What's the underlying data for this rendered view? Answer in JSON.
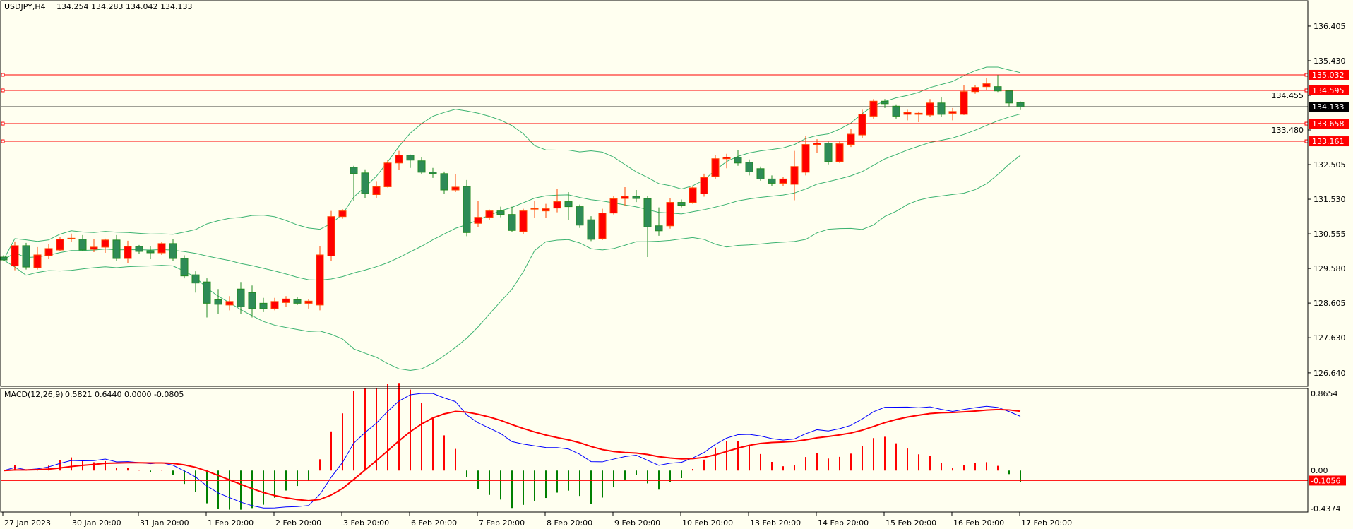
{
  "header": {
    "symbol": "USDJPY,H4",
    "ohlc": "134.254 134.283 134.042 134.133"
  },
  "macd_header": {
    "label": "MACD(12,26,9)",
    "values": "0.5821 0.6440 0.0000 -0.0805"
  },
  "colors": {
    "background": "#fffff0",
    "bull": "#ff0000",
    "bull_border": "#ff4500",
    "bear": "#2e8b57",
    "bear_border": "#228b22",
    "bands": "#3cb371",
    "level": "#ff0000",
    "macd_line": "#0000ff",
    "signal_line": "#ff0000"
  },
  "chart_data": {
    "type": "candlestick",
    "title": "USDJPY,H4",
    "price_range": [
      126.26,
      137.12
    ],
    "y_ticks": [
      "136.405",
      "135.430",
      "134.455",
      "133.480",
      "132.505",
      "131.530",
      "130.555",
      "129.580",
      "128.605",
      "127.630",
      "126.640"
    ],
    "x_ticks": [
      "27 Jan 2023",
      "30 Jan 20:00",
      "31 Jan 20:00",
      "1 Feb 20:00",
      "2 Feb 20:00",
      "3 Feb 20:00",
      "6 Feb 20:00",
      "7 Feb 20:00",
      "8 Feb 20:00",
      "9 Feb 20:00",
      "10 Feb 20:00",
      "13 Feb 20:00",
      "14 Feb 20:00",
      "15 Feb 20:00",
      "16 Feb 20:00",
      "17 Feb 20:00"
    ],
    "bars_per_x_tick": 6,
    "indicators": [
      "Bollinger Bands(20,2)",
      "MACD(12,26,9)"
    ],
    "candles_ohlc": [
      [
        129.9,
        129.95,
        129.8,
        129.82
      ],
      [
        129.65,
        130.34,
        129.53,
        130.22
      ],
      [
        130.22,
        130.3,
        129.55,
        129.62
      ],
      [
        129.6,
        130.18,
        129.55,
        129.96
      ],
      [
        129.94,
        130.26,
        129.84,
        130.14
      ],
      [
        130.1,
        130.46,
        130.08,
        130.4
      ],
      [
        130.41,
        130.56,
        130.32,
        130.43
      ],
      [
        130.4,
        130.52,
        130.08,
        130.1
      ],
      [
        130.12,
        130.4,
        130.04,
        130.18
      ],
      [
        130.18,
        130.42,
        130.02,
        130.38
      ],
      [
        130.38,
        130.52,
        129.78,
        129.86
      ],
      [
        129.86,
        130.36,
        129.72,
        130.2
      ],
      [
        130.2,
        130.24,
        130.0,
        130.06
      ],
      [
        130.08,
        130.2,
        129.84,
        130.02
      ],
      [
        130.02,
        130.32,
        129.96,
        130.28
      ],
      [
        130.28,
        130.4,
        129.78,
        129.86
      ],
      [
        129.86,
        129.95,
        129.3,
        129.37
      ],
      [
        129.4,
        129.5,
        128.9,
        129.17
      ],
      [
        129.2,
        129.3,
        128.2,
        128.6
      ],
      [
        128.7,
        129.0,
        128.3,
        128.57
      ],
      [
        128.55,
        128.8,
        128.4,
        128.65
      ],
      [
        129.0,
        129.2,
        128.3,
        128.5
      ],
      [
        128.9,
        129.1,
        128.2,
        128.45
      ],
      [
        128.6,
        128.75,
        128.35,
        128.45
      ],
      [
        128.45,
        128.75,
        128.4,
        128.65
      ],
      [
        128.62,
        128.8,
        128.5,
        128.72
      ],
      [
        128.7,
        128.78,
        128.55,
        128.6
      ],
      [
        128.6,
        128.72,
        128.45,
        128.66
      ],
      [
        128.55,
        130.2,
        128.4,
        129.96
      ],
      [
        129.93,
        131.2,
        129.8,
        131.04
      ],
      [
        131.04,
        131.25,
        130.98,
        131.2
      ],
      [
        132.43,
        132.47,
        131.49,
        132.25
      ],
      [
        132.27,
        132.37,
        131.55,
        131.69
      ],
      [
        131.66,
        132.04,
        131.55,
        131.88
      ],
      [
        131.88,
        132.63,
        131.86,
        132.55
      ],
      [
        132.55,
        132.89,
        132.35,
        132.77
      ],
      [
        132.77,
        132.79,
        132.41,
        132.63
      ],
      [
        132.61,
        132.71,
        132.23,
        132.29
      ],
      [
        132.29,
        132.41,
        132.13,
        132.25
      ],
      [
        132.25,
        132.31,
        131.67,
        131.79
      ],
      [
        131.79,
        132.23,
        131.73,
        131.87
      ],
      [
        131.89,
        132.07,
        130.49,
        130.59
      ],
      [
        130.85,
        131.47,
        130.75,
        131.02
      ],
      [
        131.02,
        131.24,
        130.95,
        131.2
      ],
      [
        131.2,
        131.32,
        131.02,
        131.1
      ],
      [
        131.1,
        131.32,
        130.6,
        130.65
      ],
      [
        130.62,
        131.26,
        130.55,
        131.2
      ],
      [
        131.25,
        131.48,
        131.0,
        131.27
      ],
      [
        131.2,
        131.4,
        131.0,
        131.26
      ],
      [
        131.28,
        131.81,
        131.16,
        131.46
      ],
      [
        131.46,
        131.73,
        130.95,
        131.32
      ],
      [
        131.32,
        131.38,
        130.72,
        130.8
      ],
      [
        130.95,
        131.05,
        130.35,
        130.4
      ],
      [
        130.42,
        131.26,
        130.38,
        131.14
      ],
      [
        131.14,
        131.63,
        131.1,
        131.54
      ],
      [
        131.55,
        131.87,
        131.34,
        131.61
      ],
      [
        131.61,
        131.79,
        131.45,
        131.55
      ],
      [
        131.55,
        131.63,
        129.9,
        130.75
      ],
      [
        130.78,
        131.3,
        130.5,
        130.64
      ],
      [
        130.78,
        131.57,
        130.7,
        131.44
      ],
      [
        131.44,
        131.52,
        131.3,
        131.36
      ],
      [
        131.44,
        131.9,
        131.4,
        131.85
      ],
      [
        131.68,
        132.25,
        131.6,
        132.14
      ],
      [
        132.17,
        132.77,
        132.1,
        132.67
      ],
      [
        132.67,
        132.81,
        132.4,
        132.71
      ],
      [
        132.71,
        132.91,
        132.47,
        132.55
      ],
      [
        132.57,
        132.65,
        132.2,
        132.3
      ],
      [
        132.39,
        132.45,
        132.05,
        132.1
      ],
      [
        132.1,
        132.2,
        131.9,
        131.98
      ],
      [
        131.98,
        132.15,
        131.9,
        132.1
      ],
      [
        131.95,
        132.89,
        131.5,
        132.45
      ],
      [
        132.29,
        133.31,
        132.2,
        133.07
      ],
      [
        133.07,
        133.22,
        132.83,
        133.11
      ],
      [
        133.11,
        133.15,
        132.51,
        132.59
      ],
      [
        132.59,
        133.15,
        132.55,
        133.09
      ],
      [
        133.07,
        133.5,
        133.0,
        133.36
      ],
      [
        133.34,
        134.05,
        133.25,
        133.92
      ],
      [
        133.87,
        134.35,
        133.8,
        134.29
      ],
      [
        134.29,
        134.35,
        134.1,
        134.22
      ],
      [
        134.15,
        134.2,
        133.8,
        133.87
      ],
      [
        133.92,
        134.05,
        133.75,
        133.97
      ],
      [
        133.92,
        134.0,
        133.7,
        133.95
      ],
      [
        133.9,
        134.35,
        133.85,
        134.24
      ],
      [
        134.24,
        134.4,
        133.85,
        133.92
      ],
      [
        133.95,
        134.1,
        133.75,
        134.0
      ],
      [
        133.92,
        134.75,
        133.9,
        134.56
      ],
      [
        134.56,
        134.75,
        134.5,
        134.68
      ],
      [
        134.7,
        134.95,
        134.6,
        134.78
      ],
      [
        134.7,
        135.03,
        134.55,
        134.58
      ],
      [
        134.58,
        134.6,
        134.15,
        134.24
      ],
      [
        134.254,
        134.283,
        134.042,
        134.133
      ]
    ],
    "levels": [
      "135.032",
      "134.595",
      "133.658",
      "133.161"
    ],
    "current_price": "134.133",
    "macd": {
      "range": [
        -0.4374,
        0.8654
      ],
      "y_ticks": [
        "0.8654",
        "0.00",
        "-0.4374"
      ],
      "level": "-0.1056"
    }
  }
}
